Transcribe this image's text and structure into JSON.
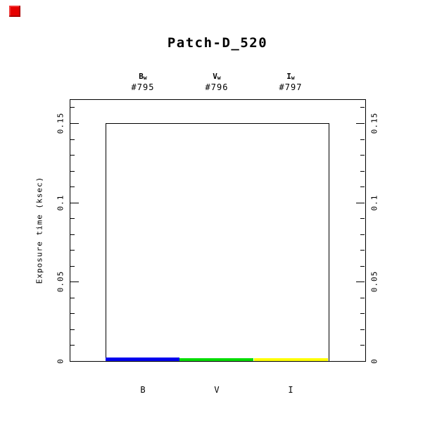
{
  "window": {
    "busy_indicator_color": "#e60000"
  },
  "chart_data": {
    "type": "bar",
    "title": "Patch-D_520",
    "ylabel": "Exposure time (ksec)",
    "xlabel": "",
    "ylim": [
      0,
      0.165
    ],
    "grid": false,
    "legend": "none",
    "yticks_major": [
      {
        "v": 0,
        "label": "0"
      },
      {
        "v": 0.05,
        "label": "0.05"
      },
      {
        "v": 0.1,
        "label": "0.1"
      },
      {
        "v": 0.15,
        "label": "0.15"
      }
    ],
    "ytick_minor_step": 0.01,
    "outline_value_ksec": 0.15,
    "categories": [
      "B",
      "V",
      "I"
    ],
    "filters": [
      {
        "band_main": "B",
        "band_sub": "w",
        "exposure_id": "#795",
        "bottom_label": "B",
        "color": "#0000ee",
        "value_ksec": 0.002,
        "planned_ksec": 0.15
      },
      {
        "band_main": "V",
        "band_sub": "w",
        "exposure_id": "#796",
        "bottom_label": "V",
        "color": "#00dd00",
        "value_ksec": 0.0016,
        "planned_ksec": 0.15
      },
      {
        "band_main": "I",
        "band_sub": "w",
        "exposure_id": "#797",
        "bottom_label": "I",
        "color": "#ffff00",
        "value_ksec": 0.0016,
        "planned_ksec": 0.15
      }
    ],
    "axis_color": "#000000"
  }
}
